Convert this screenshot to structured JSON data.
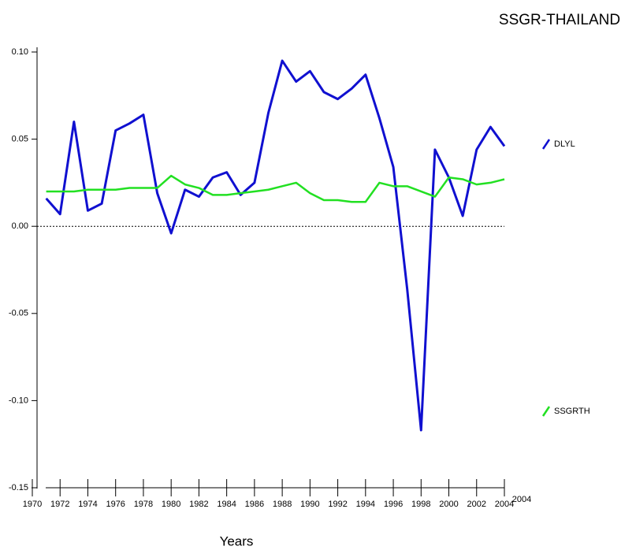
{
  "chart_data": {
    "type": "line",
    "title": "SSGR-THAILAND",
    "x_label": "Years",
    "x": [
      1971,
      1972,
      1973,
      1974,
      1975,
      1976,
      1977,
      1978,
      1979,
      1980,
      1981,
      1982,
      1983,
      1984,
      1985,
      1986,
      1987,
      1988,
      1989,
      1990,
      1991,
      1992,
      1993,
      1994,
      1995,
      1996,
      1997,
      1998,
      1999,
      2000,
      2001,
      2002,
      2003,
      2004
    ],
    "series": [
      {
        "name": "DLYL",
        "color": "#1010d0",
        "values": [
          0.016,
          0.007,
          0.06,
          0.009,
          0.013,
          0.055,
          0.059,
          0.064,
          0.019,
          -0.004,
          0.021,
          0.017,
          0.028,
          0.031,
          0.018,
          0.025,
          0.065,
          0.095,
          0.083,
          0.089,
          0.077,
          0.073,
          0.079,
          0.087,
          0.062,
          0.034,
          -0.036,
          -0.117,
          0.044,
          0.028,
          0.006,
          0.044,
          0.057,
          0.046
        ]
      },
      {
        "name": "SSGRTH",
        "color": "#22e022",
        "values": [
          0.02,
          0.02,
          0.02,
          0.021,
          0.021,
          0.021,
          0.022,
          0.022,
          0.022,
          0.029,
          0.024,
          0.022,
          0.018,
          0.018,
          0.019,
          0.02,
          0.021,
          0.023,
          0.025,
          0.019,
          0.015,
          0.015,
          0.014,
          0.014,
          0.025,
          0.023,
          0.023,
          0.02,
          0.017,
          0.028,
          0.027,
          0.024,
          0.025,
          0.027
        ]
      }
    ],
    "xlim": [
      1970,
      2004
    ],
    "xticks": [
      1970,
      1972,
      1974,
      1976,
      1978,
      1980,
      1982,
      1984,
      1986,
      1988,
      1990,
      1992,
      1994,
      1996,
      1998,
      2000,
      2002,
      2004
    ],
    "ylim": [
      -0.15,
      0.1
    ],
    "yticks": [
      {
        "value": 0.1,
        "label": "0.10"
      },
      0.05,
      {
        "value": 0,
        "label": "0.00"
      },
      -0.05,
      {
        "value": -0.1,
        "label": "-0.10"
      },
      -0.15
    ],
    "annotation": "2004",
    "zero_line": true
  }
}
